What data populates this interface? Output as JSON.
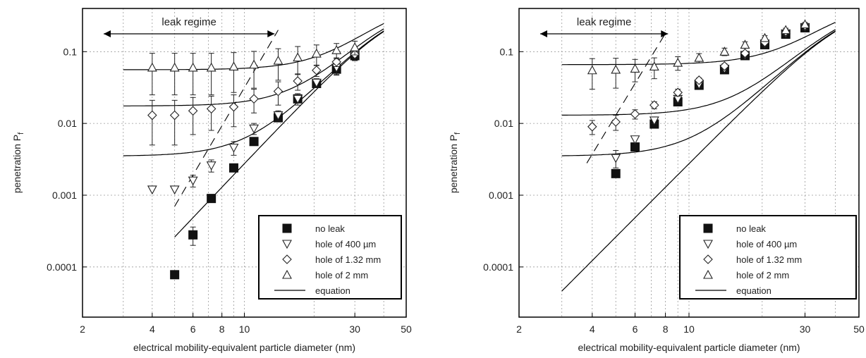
{
  "chart_data": [
    {
      "type": "scatter",
      "xlabel": "electrical mobility-equivalent particle diameter (nm)",
      "ylabel": "penetration P",
      "ylabel_subscript": "f",
      "x_scale": "log",
      "y_scale": "log",
      "xlim": [
        2,
        50
      ],
      "ylim": [
        2e-05,
        0.4
      ],
      "x_ticks": [
        2,
        4,
        6,
        8,
        10,
        30,
        50
      ],
      "y_ticks": [
        "0.0001",
        "0.001",
        "0.01",
        "0.1"
      ],
      "annotation": "leak regime",
      "grid": true,
      "legend_position": "bottom-right",
      "series": [
        {
          "name": "no leak",
          "marker": "filled-square",
          "points": [
            [
              5,
              7.8e-05,
              0
            ],
            [
              6,
              0.00028,
              8e-05
            ],
            [
              7.2,
              0.0009,
              0.0001
            ],
            [
              9,
              0.0024,
              0.0002
            ],
            [
              11,
              0.0056,
              0.0005
            ],
            [
              14,
              0.012,
              0.001
            ],
            [
              17,
              0.022,
              0.002
            ],
            [
              20.5,
              0.036,
              0.003
            ],
            [
              25,
              0.057,
              0.01
            ],
            [
              30,
              0.088,
              0.012
            ]
          ]
        },
        {
          "name": "hole of 400 µm",
          "marker": "down-triangle",
          "points": [
            [
              4,
              0.0012,
              0
            ],
            [
              5,
              0.0012,
              0
            ],
            [
              6,
              0.0016,
              0.0003
            ],
            [
              7.2,
              0.0026,
              0.0005
            ],
            [
              9,
              0.0046,
              0.001
            ],
            [
              11,
              0.0085,
              0.0015
            ],
            [
              14,
              0.013,
              0.002
            ],
            [
              17,
              0.022,
              0.004
            ],
            [
              20.5,
              0.037,
              0.005
            ],
            [
              25,
              0.06,
              0.012
            ],
            [
              30,
              0.09,
              0.015
            ]
          ]
        },
        {
          "name": "hole of 1.32 mm",
          "marker": "diamond",
          "points": [
            [
              4,
              0.013,
              0.008
            ],
            [
              5,
              0.013,
              0.008
            ],
            [
              6,
              0.015,
              0.008
            ],
            [
              7.2,
              0.016,
              0.008
            ],
            [
              9,
              0.017,
              0.008
            ],
            [
              11,
              0.022,
              0.008
            ],
            [
              14,
              0.028,
              0.01
            ],
            [
              17,
              0.039,
              0.01
            ],
            [
              20.5,
              0.055,
              0.01
            ],
            [
              25,
              0.072,
              0.01
            ],
            [
              30,
              0.092,
              0.01
            ]
          ]
        },
        {
          "name": "hole of 2 mm",
          "marker": "triangle",
          "points": [
            [
              4,
              0.06,
              0.035
            ],
            [
              5,
              0.06,
              0.035
            ],
            [
              6,
              0.06,
              0.035
            ],
            [
              7.2,
              0.06,
              0.035
            ],
            [
              9,
              0.062,
              0.035
            ],
            [
              11,
              0.066,
              0.035
            ],
            [
              14,
              0.075,
              0.035
            ],
            [
              17,
              0.083,
              0.035
            ],
            [
              20.5,
              0.094,
              0.03
            ],
            [
              25,
              0.105,
              0.025
            ],
            [
              30,
              0.115,
              0.025
            ]
          ]
        }
      ],
      "equation_curves": [
        {
          "name": "equation",
          "leak": 0,
          "x_start": 5
        },
        {
          "leak": 0.0035,
          "x_start": 3
        },
        {
          "leak": 0.0175,
          "x_start": 3
        },
        {
          "leak": 0.056,
          "x_start": 3
        }
      ],
      "dashed_boundary": [
        [
          5,
          0.0007
        ],
        [
          14,
          0.2
        ]
      ]
    },
    {
      "type": "scatter",
      "xlabel": "electrical mobility-equivalent particle diameter (nm)",
      "ylabel": "penetration P",
      "ylabel_subscript": "f",
      "x_scale": "log",
      "y_scale": "log",
      "xlim": [
        2,
        50
      ],
      "ylim": [
        2e-05,
        0.4
      ],
      "x_ticks": [
        2,
        4,
        6,
        8,
        10,
        30,
        50
      ],
      "y_ticks": [
        "0.0001",
        "0.001",
        "0.01",
        "0.1"
      ],
      "annotation": "leak regime",
      "grid": true,
      "legend_position": "bottom-right",
      "series": [
        {
          "name": "no leak",
          "marker": "filled-square",
          "points": [
            [
              5,
              0.002,
              0
            ],
            [
              6,
              0.0047,
              0
            ],
            [
              7.2,
              0.0098,
              0.001
            ],
            [
              9,
              0.02,
              0.002
            ],
            [
              11,
              0.034,
              0.003
            ],
            [
              14,
              0.056,
              0.005
            ],
            [
              17,
              0.088,
              0.006
            ],
            [
              20.5,
              0.125,
              0.008
            ],
            [
              25,
              0.175,
              0.01
            ],
            [
              30,
              0.215,
              0.015
            ]
          ]
        },
        {
          "name": "hole of 400 µm",
          "marker": "down-triangle",
          "points": [
            [
              5,
              0.0033,
              0.0009
            ],
            [
              6,
              0.006,
              0
            ],
            [
              7.2,
              0.011,
              0.001
            ],
            [
              9,
              0.022,
              0.002
            ],
            [
              11,
              0.035,
              0.003
            ],
            [
              14,
              0.058,
              0.005
            ],
            [
              17,
              0.09,
              0.006
            ],
            [
              20.5,
              0.13,
              0.008
            ],
            [
              25,
              0.18,
              0.01
            ],
            [
              30,
              0.22,
              0.015
            ]
          ]
        },
        {
          "name": "hole of 1.32 mm",
          "marker": "diamond",
          "points": [
            [
              4,
              0.009,
              0.002
            ],
            [
              5,
              0.0105,
              0.0025
            ],
            [
              6,
              0.0135,
              0.002
            ],
            [
              7.2,
              0.018,
              0.002
            ],
            [
              9,
              0.027,
              0.003
            ],
            [
              11,
              0.04,
              0.003
            ],
            [
              14,
              0.063,
              0.005
            ],
            [
              17,
              0.095,
              0.006
            ],
            [
              20.5,
              0.135,
              0.008
            ],
            [
              25,
              0.19,
              0.01
            ],
            [
              30,
              0.23,
              0.015
            ]
          ]
        },
        {
          "name": "hole of 2 mm",
          "marker": "triangle",
          "points": [
            [
              4,
              0.055,
              0.025
            ],
            [
              5,
              0.056,
              0.025
            ],
            [
              6,
              0.058,
              0.02
            ],
            [
              7.2,
              0.062,
              0.02
            ],
            [
              9,
              0.07,
              0.015
            ],
            [
              11,
              0.082,
              0.012
            ],
            [
              14,
              0.1,
              0.012
            ],
            [
              17,
              0.125,
              0.012
            ],
            [
              20.5,
              0.155,
              0.012
            ],
            [
              25,
              0.2,
              0.012
            ],
            [
              30,
              0.24,
              0.015
            ]
          ]
        }
      ],
      "equation_curves": [
        {
          "name": "equation",
          "leak": 0,
          "x_start": 3
        },
        {
          "leak": 0.0035,
          "x_start": 3
        },
        {
          "leak": 0.013,
          "x_start": 3
        },
        {
          "leak": 0.066,
          "x_start": 3
        }
      ],
      "dashed_boundary": [
        [
          3.8,
          0.0028
        ],
        [
          8,
          0.18
        ]
      ]
    }
  ]
}
